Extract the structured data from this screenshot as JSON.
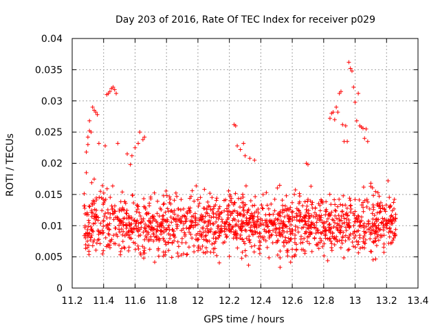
{
  "chart_data": {
    "type": "scatter",
    "title": "Day 203 of 2016, Rate Of TEC Index for receiver p029",
    "xlabel": "GPS time / hours",
    "ylabel": "ROTI / TECUs",
    "xlim": [
      11.2,
      13.4
    ],
    "ylim": [
      0,
      0.04
    ],
    "xticks": [
      "11.2",
      "11.4",
      "11.6",
      "11.8",
      "12",
      "12.2",
      "12.4",
      "12.6",
      "12.8",
      "13",
      "13.2",
      "13.4"
    ],
    "yticks": [
      "0",
      "0.005",
      "0.01",
      "0.015",
      "0.02",
      "0.025",
      "0.03",
      "0.035",
      "0.04"
    ],
    "grid": true,
    "marker": "+",
    "color": "#ff0000",
    "series": [
      {
        "name": "ROTI",
        "points": [
          [
            11.28,
            0.0128
          ],
          [
            11.29,
            0.0185
          ],
          [
            11.29,
            0.0218
          ],
          [
            11.3,
            0.0242
          ],
          [
            11.3,
            0.023
          ],
          [
            11.31,
            0.0252
          ],
          [
            11.31,
            0.0268
          ],
          [
            11.32,
            0.025
          ],
          [
            11.33,
            0.029
          ],
          [
            11.34,
            0.0285
          ],
          [
            11.35,
            0.0282
          ],
          [
            11.36,
            0.0278
          ],
          [
            11.37,
            0.0232
          ],
          [
            11.41,
            0.0228
          ],
          [
            11.42,
            0.031
          ],
          [
            11.43,
            0.0312
          ],
          [
            11.44,
            0.0315
          ],
          [
            11.45,
            0.032
          ],
          [
            11.46,
            0.0322
          ],
          [
            11.47,
            0.0318
          ],
          [
            11.48,
            0.0312
          ],
          [
            11.49,
            0.0232
          ],
          [
            11.58,
            0.0212
          ],
          [
            11.6,
            0.0225
          ],
          [
            11.62,
            0.0232
          ],
          [
            11.63,
            0.025
          ],
          [
            11.65,
            0.0238
          ],
          [
            11.66,
            0.0242
          ],
          [
            11.57,
            0.0198
          ],
          [
            11.55,
            0.0215
          ],
          [
            12.23,
            0.0262
          ],
          [
            12.24,
            0.026
          ],
          [
            12.25,
            0.0228
          ],
          [
            12.27,
            0.0222
          ],
          [
            12.29,
            0.0232
          ],
          [
            12.3,
            0.0212
          ],
          [
            12.33,
            0.0208
          ],
          [
            12.36,
            0.0205
          ],
          [
            12.69,
            0.02
          ],
          [
            12.7,
            0.0198
          ],
          [
            12.84,
            0.0272
          ],
          [
            12.85,
            0.028
          ],
          [
            12.86,
            0.0282
          ],
          [
            12.87,
            0.027
          ],
          [
            12.88,
            0.029
          ],
          [
            12.89,
            0.0282
          ],
          [
            12.9,
            0.0312
          ],
          [
            12.91,
            0.0315
          ],
          [
            12.92,
            0.0262
          ],
          [
            12.93,
            0.0235
          ],
          [
            12.94,
            0.026
          ],
          [
            12.95,
            0.0235
          ],
          [
            12.96,
            0.0362
          ],
          [
            12.97,
            0.0352
          ],
          [
            12.98,
            0.0348
          ],
          [
            12.99,
            0.0322
          ],
          [
            13.0,
            0.0298
          ],
          [
            13.01,
            0.0268
          ],
          [
            13.02,
            0.0312
          ],
          [
            13.03,
            0.026
          ],
          [
            13.04,
            0.0258
          ],
          [
            13.05,
            0.0256
          ],
          [
            13.06,
            0.024
          ],
          [
            13.07,
            0.0255
          ],
          [
            13.08,
            0.0235
          ],
          [
            13.1,
            0.0168
          ]
        ]
      }
    ]
  }
}
